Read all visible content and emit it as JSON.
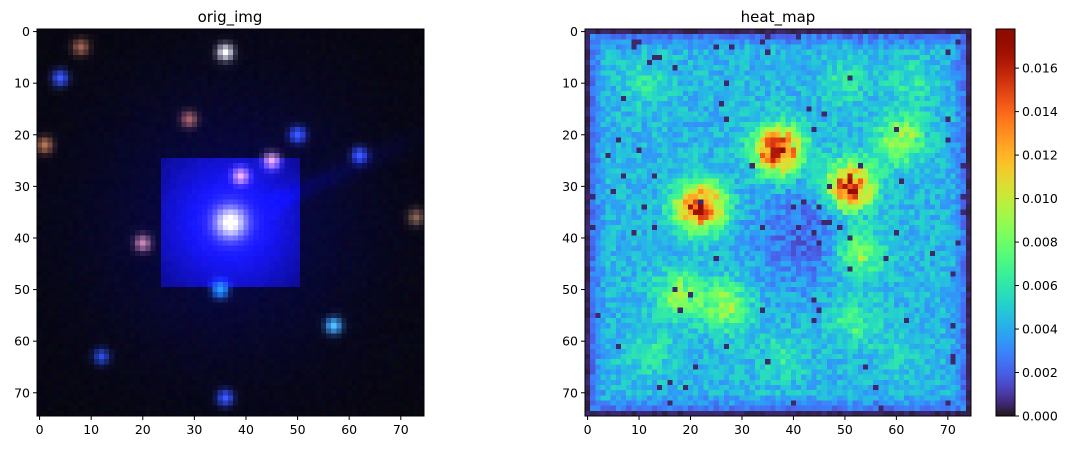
{
  "chart_data": [
    {
      "type": "image",
      "title": "orig_img",
      "xlim": [
        0,
        75
      ],
      "ylim": [
        75,
        0
      ],
      "xticks": [
        0,
        10,
        20,
        30,
        40,
        50,
        60,
        70
      ],
      "yticks": [
        0,
        10,
        20,
        30,
        40,
        50,
        60,
        70
      ],
      "background": "#050510",
      "sources": [
        {
          "x": 37,
          "y": 37,
          "kind": "core"
        },
        {
          "x": 4,
          "y": 9,
          "color": "#3355ff"
        },
        {
          "x": 36,
          "y": 4,
          "color": "#ffffff"
        },
        {
          "x": 50,
          "y": 20,
          "color": "#3355ff"
        },
        {
          "x": 62,
          "y": 24,
          "color": "#3355ff"
        },
        {
          "x": 57,
          "y": 57,
          "color": "#44bbff"
        },
        {
          "x": 36,
          "y": 71,
          "color": "#3355ff"
        },
        {
          "x": 12,
          "y": 63,
          "color": "#2244cc"
        },
        {
          "x": 35,
          "y": 50,
          "color": "#2299ff"
        },
        {
          "x": 45,
          "y": 25,
          "color": "#e0a0c0"
        },
        {
          "x": 39,
          "y": 28,
          "color": "#e0a0c0"
        },
        {
          "x": 20,
          "y": 41,
          "color": "#c08080"
        },
        {
          "x": 29,
          "y": 17,
          "color": "#a06040"
        },
        {
          "x": 73,
          "y": 36,
          "color": "#806040"
        },
        {
          "x": 8,
          "y": 3,
          "color": "#a06040"
        },
        {
          "x": 1,
          "y": 22,
          "color": "#b07040"
        }
      ]
    },
    {
      "type": "heatmap",
      "title": "heat_map",
      "xlim": [
        0,
        75
      ],
      "ylim": [
        75,
        0
      ],
      "xticks": [
        0,
        10,
        20,
        30,
        40,
        50,
        60,
        70
      ],
      "yticks": [
        0,
        10,
        20,
        30,
        40,
        50,
        60,
        70
      ],
      "colormap": "turbo",
      "vmin": 0,
      "vmax": 0.0178,
      "colorbar_ticks": [
        "0.000",
        "0.002",
        "0.004",
        "0.006",
        "0.008",
        "0.010",
        "0.012",
        "0.014",
        "0.016"
      ],
      "colorbar_values": [
        0,
        0.002,
        0.004,
        0.006,
        0.008,
        0.01,
        0.012,
        0.014,
        0.016
      ],
      "hotspots": [
        {
          "x": 37,
          "y": 23,
          "value": 0.0178
        },
        {
          "x": 22,
          "y": 34,
          "value": 0.017
        },
        {
          "x": 51,
          "y": 30,
          "value": 0.0165
        },
        {
          "x": 61,
          "y": 21,
          "value": 0.01
        },
        {
          "x": 18,
          "y": 51,
          "value": 0.009
        },
        {
          "x": 27,
          "y": 53,
          "value": 0.0095
        },
        {
          "x": 53,
          "y": 43,
          "value": 0.009
        },
        {
          "x": 52,
          "y": 56,
          "value": 0.007
        },
        {
          "x": 12,
          "y": 62,
          "value": 0.006
        },
        {
          "x": 38,
          "y": 63,
          "value": 0.006
        },
        {
          "x": 60,
          "y": 62,
          "value": 0.005
        },
        {
          "x": 12,
          "y": 10,
          "value": 0.006
        },
        {
          "x": 50,
          "y": 10,
          "value": 0.006
        },
        {
          "x": 63,
          "y": 10,
          "value": 0.006
        }
      ]
    }
  ]
}
